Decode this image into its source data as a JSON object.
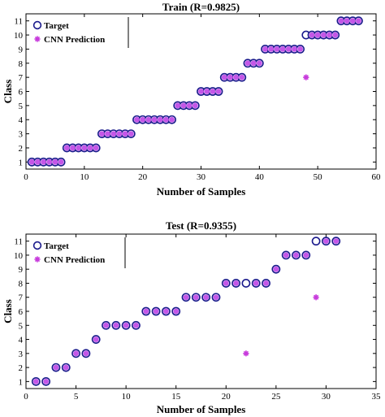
{
  "chart_data": [
    {
      "type": "scatter",
      "title": "Train (R=0.9825)",
      "xlabel": "Number of Samples",
      "ylabel": "Class",
      "xlim": [
        0,
        60
      ],
      "ylim": [
        0.5,
        11.5
      ],
      "xticks": [
        0,
        10,
        20,
        30,
        40,
        50,
        60
      ],
      "yticks": [
        1,
        2,
        3,
        4,
        5,
        6,
        7,
        8,
        9,
        10,
        11
      ],
      "legend_position": "top-left",
      "series": [
        {
          "name": "Target",
          "marker": "circle",
          "x": [
            1,
            2,
            3,
            4,
            5,
            6,
            7,
            8,
            9,
            10,
            11,
            12,
            13,
            14,
            15,
            16,
            17,
            18,
            19,
            20,
            21,
            22,
            23,
            24,
            25,
            26,
            27,
            28,
            29,
            30,
            31,
            32,
            33,
            34,
            35,
            36,
            37,
            38,
            39,
            40,
            41,
            42,
            43,
            44,
            45,
            46,
            47,
            48,
            49,
            50,
            51,
            52,
            53,
            54,
            55,
            56,
            57
          ],
          "y": [
            1,
            1,
            1,
            1,
            1,
            1,
            2,
            2,
            2,
            2,
            2,
            2,
            3,
            3,
            3,
            3,
            3,
            3,
            4,
            4,
            4,
            4,
            4,
            4,
            4,
            5,
            5,
            5,
            5,
            6,
            6,
            6,
            6,
            7,
            7,
            7,
            7,
            8,
            8,
            8,
            9,
            9,
            9,
            9,
            9,
            9,
            9,
            10,
            10,
            10,
            10,
            10,
            10,
            11,
            11,
            11,
            11
          ]
        },
        {
          "name": "CNN Prediction",
          "marker": "star",
          "x": [
            1,
            2,
            3,
            4,
            5,
            6,
            7,
            8,
            9,
            10,
            11,
            12,
            13,
            14,
            15,
            16,
            17,
            18,
            19,
            20,
            21,
            22,
            23,
            24,
            25,
            26,
            27,
            28,
            29,
            30,
            31,
            32,
            33,
            34,
            35,
            36,
            37,
            38,
            39,
            40,
            41,
            42,
            43,
            44,
            45,
            46,
            47,
            48,
            49,
            50,
            51,
            52,
            53,
            54,
            55,
            56,
            57
          ],
          "y": [
            1,
            1,
            1,
            1,
            1,
            1,
            2,
            2,
            2,
            2,
            2,
            2,
            3,
            3,
            3,
            3,
            3,
            3,
            4,
            4,
            4,
            4,
            4,
            4,
            4,
            5,
            5,
            5,
            5,
            6,
            6,
            6,
            6,
            7,
            7,
            7,
            7,
            8,
            8,
            8,
            9,
            9,
            9,
            9,
            9,
            9,
            9,
            7,
            10,
            10,
            10,
            10,
            10,
            11,
            11,
            11,
            11
          ]
        }
      ]
    },
    {
      "type": "scatter",
      "title": "Test (R=0.9355)",
      "xlabel": "Number of Samples",
      "ylabel": "Class",
      "xlim": [
        0,
        35
      ],
      "ylim": [
        0.5,
        11.5
      ],
      "xticks": [
        0,
        5,
        10,
        15,
        20,
        25,
        30,
        35
      ],
      "yticks": [
        1,
        2,
        3,
        4,
        5,
        6,
        7,
        8,
        9,
        10,
        11
      ],
      "legend_position": "top-left",
      "series": [
        {
          "name": "Target",
          "marker": "circle",
          "x": [
            1,
            2,
            3,
            4,
            5,
            6,
            7,
            8,
            9,
            10,
            11,
            12,
            13,
            14,
            15,
            16,
            17,
            18,
            19,
            20,
            21,
            22,
            23,
            24,
            25,
            26,
            27,
            28,
            29,
            30,
            31
          ],
          "y": [
            1,
            1,
            2,
            2,
            3,
            3,
            4,
            5,
            5,
            5,
            5,
            6,
            6,
            6,
            6,
            7,
            7,
            7,
            7,
            8,
            8,
            8,
            8,
            8,
            9,
            10,
            10,
            10,
            11,
            11,
            11
          ]
        },
        {
          "name": "CNN Prediction",
          "marker": "star",
          "x": [
            1,
            2,
            3,
            4,
            5,
            6,
            7,
            8,
            9,
            10,
            11,
            12,
            13,
            14,
            15,
            16,
            17,
            18,
            19,
            20,
            21,
            22,
            23,
            24,
            25,
            26,
            27,
            28,
            29,
            30,
            31
          ],
          "y": [
            1,
            1,
            2,
            2,
            3,
            3,
            4,
            5,
            5,
            5,
            5,
            6,
            6,
            6,
            6,
            7,
            7,
            7,
            7,
            8,
            8,
            3,
            8,
            8,
            9,
            10,
            10,
            10,
            7,
            11,
            11
          ]
        }
      ]
    }
  ],
  "style": {
    "target_edge": "#1a1a8c",
    "prediction_color": "#c83cdc",
    "prediction_fill": "#c456e8"
  }
}
